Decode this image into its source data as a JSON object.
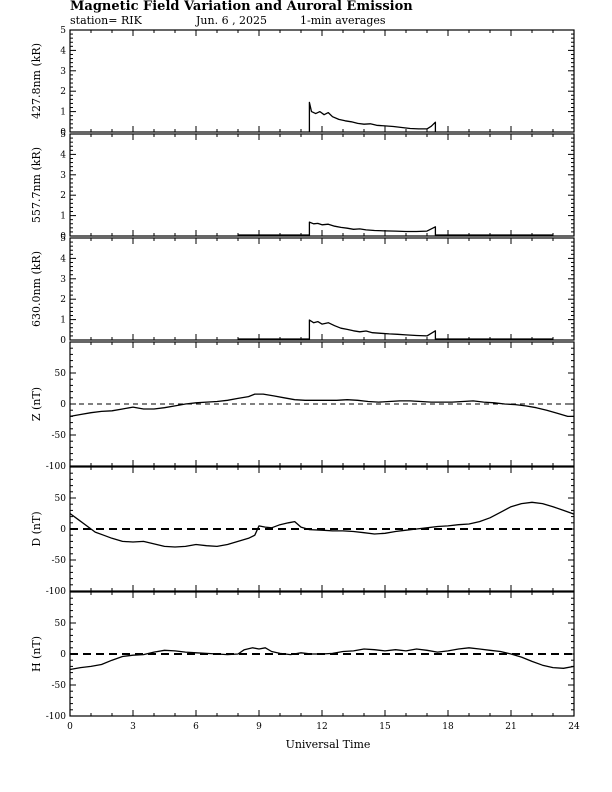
{
  "header": {
    "title": "Magnetic Field Variation and Auroral Emission",
    "station": "station= RIK",
    "date": "Jun. 6 , 2025",
    "averaging": "1-min averages"
  },
  "chart_data": {
    "type": "line",
    "xlabel": "Universal Time",
    "xlim": [
      0,
      24
    ],
    "xticks": [
      0,
      3,
      6,
      9,
      12,
      15,
      18,
      21,
      24
    ],
    "panels": [
      {
        "id": "p4278",
        "ylabel": "427.8nm (kR)",
        "ylim": [
          0,
          5
        ],
        "yticks": [
          0,
          1,
          2,
          3,
          4,
          5
        ],
        "zero_line": "none",
        "base_segments": [],
        "series": [
          [
            11.4,
            0
          ],
          [
            11.4,
            1.45
          ],
          [
            11.5,
            1.0
          ],
          [
            11.7,
            0.9
          ],
          [
            11.9,
            1.0
          ],
          [
            12.1,
            0.85
          ],
          [
            12.3,
            0.95
          ],
          [
            12.5,
            0.75
          ],
          [
            12.8,
            0.62
          ],
          [
            13.1,
            0.55
          ],
          [
            13.4,
            0.5
          ],
          [
            13.7,
            0.42
          ],
          [
            14.0,
            0.38
          ],
          [
            14.3,
            0.4
          ],
          [
            14.6,
            0.33
          ],
          [
            15.0,
            0.3
          ],
          [
            15.4,
            0.27
          ],
          [
            15.8,
            0.22
          ],
          [
            16.2,
            0.17
          ],
          [
            16.6,
            0.15
          ],
          [
            17.0,
            0.15
          ],
          [
            17.2,
            0.28
          ],
          [
            17.4,
            0.48
          ],
          [
            17.4,
            0
          ]
        ]
      },
      {
        "id": "p5577",
        "ylabel": "557.7nm (kR)",
        "ylim": [
          0,
          5
        ],
        "yticks": [
          0,
          1,
          2,
          3,
          4,
          5
        ],
        "zero_line": "none",
        "base_segments": [
          [
            8.0,
            11.4,
            0.08
          ],
          [
            17.4,
            23.0,
            0.08
          ]
        ],
        "series": [
          [
            11.4,
            0
          ],
          [
            11.4,
            0.68
          ],
          [
            11.6,
            0.6
          ],
          [
            11.8,
            0.62
          ],
          [
            12.0,
            0.55
          ],
          [
            12.3,
            0.58
          ],
          [
            12.6,
            0.48
          ],
          [
            12.9,
            0.42
          ],
          [
            13.2,
            0.38
          ],
          [
            13.5,
            0.33
          ],
          [
            13.8,
            0.35
          ],
          [
            14.1,
            0.3
          ],
          [
            14.5,
            0.27
          ],
          [
            15.0,
            0.25
          ],
          [
            15.5,
            0.24
          ],
          [
            16.0,
            0.22
          ],
          [
            16.5,
            0.22
          ],
          [
            17.0,
            0.24
          ],
          [
            17.4,
            0.45
          ],
          [
            17.4,
            0
          ]
        ]
      },
      {
        "id": "p6300",
        "ylabel": "630.0nm (kR)",
        "ylim": [
          0,
          5
        ],
        "yticks": [
          0,
          1,
          2,
          3,
          4,
          5
        ],
        "zero_line": "none",
        "base_segments": [
          [
            8.0,
            11.4,
            0.08
          ],
          [
            17.4,
            23.0,
            0.08
          ]
        ],
        "series": [
          [
            11.4,
            0
          ],
          [
            11.4,
            0.98
          ],
          [
            11.6,
            0.85
          ],
          [
            11.8,
            0.9
          ],
          [
            12.0,
            0.78
          ],
          [
            12.3,
            0.85
          ],
          [
            12.6,
            0.7
          ],
          [
            12.9,
            0.58
          ],
          [
            13.2,
            0.52
          ],
          [
            13.5,
            0.45
          ],
          [
            13.8,
            0.4
          ],
          [
            14.1,
            0.44
          ],
          [
            14.4,
            0.36
          ],
          [
            14.8,
            0.33
          ],
          [
            15.2,
            0.3
          ],
          [
            15.6,
            0.28
          ],
          [
            16.0,
            0.25
          ],
          [
            16.5,
            0.22
          ],
          [
            17.0,
            0.2
          ],
          [
            17.4,
            0.45
          ],
          [
            17.4,
            0
          ]
        ]
      },
      {
        "id": "pZ",
        "ylabel": "Z (nT)",
        "ylim": [
          -100,
          100
        ],
        "yticks": [
          -100,
          -50,
          0,
          50
        ],
        "zero_line": "thin",
        "base_segments": [],
        "series": [
          [
            0,
            -20
          ],
          [
            0.5,
            -17
          ],
          [
            1,
            -14
          ],
          [
            1.5,
            -12
          ],
          [
            2,
            -11
          ],
          [
            2.5,
            -8
          ],
          [
            3,
            -5
          ],
          [
            3.5,
            -8
          ],
          [
            4,
            -8
          ],
          [
            4.5,
            -6
          ],
          [
            5,
            -3
          ],
          [
            5.5,
            0
          ],
          [
            6,
            2
          ],
          [
            6.5,
            3
          ],
          [
            7,
            4
          ],
          [
            7.5,
            6
          ],
          [
            8,
            9
          ],
          [
            8.5,
            12
          ],
          [
            8.8,
            16
          ],
          [
            9.2,
            16
          ],
          [
            9.7,
            13
          ],
          [
            10.2,
            10
          ],
          [
            10.7,
            7
          ],
          [
            11.2,
            6
          ],
          [
            11.7,
            6
          ],
          [
            12.2,
            6
          ],
          [
            12.7,
            6
          ],
          [
            13.2,
            7
          ],
          [
            13.7,
            6
          ],
          [
            14.2,
            4
          ],
          [
            14.7,
            3
          ],
          [
            15.2,
            4
          ],
          [
            15.7,
            5
          ],
          [
            16.2,
            5
          ],
          [
            16.7,
            4
          ],
          [
            17.2,
            3
          ],
          [
            17.7,
            3
          ],
          [
            18.2,
            3
          ],
          [
            18.7,
            4
          ],
          [
            19.2,
            5
          ],
          [
            19.7,
            3
          ],
          [
            20.2,
            2
          ],
          [
            20.7,
            0
          ],
          [
            21.2,
            -1
          ],
          [
            21.7,
            -3
          ],
          [
            22.2,
            -6
          ],
          [
            22.7,
            -10
          ],
          [
            23.2,
            -15
          ],
          [
            23.7,
            -20
          ],
          [
            24,
            -20
          ]
        ]
      },
      {
        "id": "pD",
        "ylabel": "D (nT)",
        "ylim": [
          -100,
          100
        ],
        "yticks": [
          -100,
          -50,
          0,
          50
        ],
        "zero_line": "thick",
        "base_segments": [],
        "series": [
          [
            0,
            25
          ],
          [
            0.4,
            15
          ],
          [
            0.8,
            5
          ],
          [
            1.2,
            -5
          ],
          [
            1.6,
            -10
          ],
          [
            2,
            -15
          ],
          [
            2.5,
            -20
          ],
          [
            3,
            -21
          ],
          [
            3.5,
            -20
          ],
          [
            4,
            -24
          ],
          [
            4.5,
            -28
          ],
          [
            5,
            -29
          ],
          [
            5.5,
            -28
          ],
          [
            6,
            -25
          ],
          [
            6.5,
            -27
          ],
          [
            7,
            -28
          ],
          [
            7.5,
            -25
          ],
          [
            8,
            -20
          ],
          [
            8.5,
            -15
          ],
          [
            8.8,
            -10
          ],
          [
            9,
            5
          ],
          [
            9.3,
            3
          ],
          [
            9.6,
            2
          ],
          [
            10,
            7
          ],
          [
            10.4,
            10
          ],
          [
            10.7,
            12
          ],
          [
            11,
            3
          ],
          [
            11.4,
            -1
          ],
          [
            12,
            -2
          ],
          [
            12.5,
            -3
          ],
          [
            13,
            -3
          ],
          [
            13.5,
            -4
          ],
          [
            14,
            -6
          ],
          [
            14.5,
            -8
          ],
          [
            15,
            -7
          ],
          [
            15.5,
            -4
          ],
          [
            16,
            -2
          ],
          [
            16.5,
            0
          ],
          [
            17,
            2
          ],
          [
            17.5,
            4
          ],
          [
            18,
            5
          ],
          [
            18.5,
            7
          ],
          [
            19,
            8
          ],
          [
            19.5,
            12
          ],
          [
            20,
            18
          ],
          [
            20.5,
            27
          ],
          [
            21,
            36
          ],
          [
            21.5,
            41
          ],
          [
            22,
            43
          ],
          [
            22.5,
            41
          ],
          [
            23,
            36
          ],
          [
            23.5,
            30
          ],
          [
            24,
            24
          ]
        ]
      },
      {
        "id": "pH",
        "ylabel": "H (nT)",
        "ylim": [
          -100,
          100
        ],
        "yticks": [
          -100,
          -50,
          0,
          50
        ],
        "zero_line": "thick",
        "base_segments": [],
        "series": [
          [
            0,
            -25
          ],
          [
            0.5,
            -22
          ],
          [
            1,
            -20
          ],
          [
            1.5,
            -17
          ],
          [
            2,
            -10
          ],
          [
            2.5,
            -4
          ],
          [
            3,
            -2
          ],
          [
            3.5,
            -1
          ],
          [
            4,
            3
          ],
          [
            4.5,
            6
          ],
          [
            5,
            5
          ],
          [
            5.5,
            3
          ],
          [
            6,
            2
          ],
          [
            6.5,
            1
          ],
          [
            7,
            0
          ],
          [
            7.5,
            -1
          ],
          [
            8,
            0
          ],
          [
            8.3,
            7
          ],
          [
            8.7,
            10
          ],
          [
            9,
            8
          ],
          [
            9.3,
            10
          ],
          [
            9.6,
            4
          ],
          [
            10,
            1
          ],
          [
            10.5,
            -1
          ],
          [
            11,
            2
          ],
          [
            11.5,
            0
          ],
          [
            12,
            0
          ],
          [
            12.5,
            1
          ],
          [
            13,
            4
          ],
          [
            13.5,
            5
          ],
          [
            14,
            8
          ],
          [
            14.5,
            7
          ],
          [
            15,
            5
          ],
          [
            15.5,
            7
          ],
          [
            16,
            5
          ],
          [
            16.5,
            8
          ],
          [
            17,
            6
          ],
          [
            17.5,
            3
          ],
          [
            18,
            5
          ],
          [
            18.5,
            8
          ],
          [
            19,
            10
          ],
          [
            19.5,
            8
          ],
          [
            20,
            6
          ],
          [
            20.5,
            4
          ],
          [
            21,
            0
          ],
          [
            21.5,
            -5
          ],
          [
            22,
            -12
          ],
          [
            22.5,
            -18
          ],
          [
            23,
            -22
          ],
          [
            23.5,
            -23
          ],
          [
            24,
            -20
          ]
        ]
      }
    ]
  }
}
